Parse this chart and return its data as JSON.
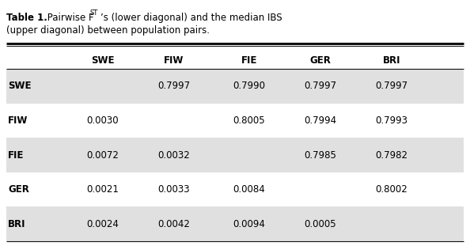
{
  "col_headers": [
    "SWE",
    "FIW",
    "FIE",
    "GER",
    "BRI"
  ],
  "row_labels": [
    "SWE",
    "FIW",
    "FIE",
    "GER",
    "BRI"
  ],
  "cell_data": [
    [
      "",
      "0.7997",
      "0.7990",
      "0.7997",
      "0.7997"
    ],
    [
      "0.0030",
      "",
      "0.8005",
      "0.7994",
      "0.7993"
    ],
    [
      "0.0072",
      "0.0032",
      "",
      "0.7985",
      "0.7982"
    ],
    [
      "0.0021",
      "0.0033",
      "0.0084",
      "",
      "0.8002"
    ],
    [
      "0.0024",
      "0.0042",
      "0.0094",
      "0.0005",
      ""
    ]
  ],
  "shaded_rows": [
    0,
    2,
    4
  ],
  "shade_color": "#e0e0e0",
  "background_color": "#ffffff",
  "text_color": "#000000",
  "figsize": [
    5.94,
    3.11
  ],
  "dpi": 100,
  "title_line1_bold": "Table 1.",
  "title_line1_normal": " Pairwise F",
  "title_line1_sub": "ST",
  "title_line1_end": "’s (lower diagonal) and the median IBS",
  "title_line2": "(upper diagonal) between population pairs."
}
